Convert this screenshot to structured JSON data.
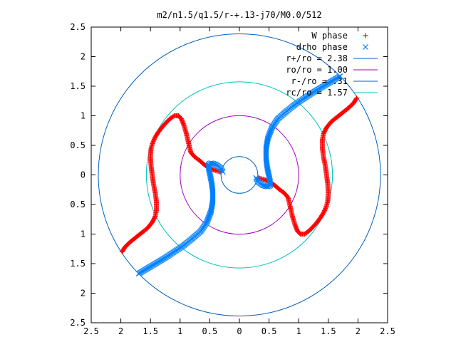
{
  "chart_data": {
    "type": "scatter",
    "title": "m2/n1.5/q1.5/r-+.13-j70/M0.0/512",
    "xlabel": "",
    "ylabel": "",
    "xlim": [
      -2.5,
      2.5
    ],
    "ylim": [
      -2.5,
      2.5
    ],
    "x_ticks": [
      -2.5,
      -2,
      -1.5,
      -1,
      -0.5,
      0,
      0.5,
      1,
      1.5,
      2,
      2.5
    ],
    "y_ticks": [
      -2.5,
      -2,
      -1.5,
      -1,
      -0.5,
      0,
      0.5,
      1,
      1.5,
      2,
      2.5
    ],
    "x_tick_labels": [
      "2.5",
      "2",
      "1.5",
      "1",
      "0.5",
      "0",
      "0.5",
      "1",
      "1.5",
      "2",
      "2.5"
    ],
    "y_tick_labels": [
      "2.5",
      "2",
      "1.5",
      "1",
      "0.5",
      "0",
      "0.5",
      "1",
      "1.5",
      "2",
      "2.5"
    ],
    "grid": false,
    "legend_position": "top-right",
    "series": [
      {
        "name": "W phase",
        "marker": "plus",
        "color": "#ff0000",
        "x": [
          -1.98,
          -1.93,
          -1.85,
          -1.75,
          -1.65,
          -1.55,
          -1.47,
          -1.42,
          -1.4,
          -1.4,
          -1.42,
          -1.45,
          -1.47,
          -1.49,
          -1.5,
          -1.49,
          -1.46,
          -1.42,
          -1.37,
          -1.31,
          -1.24,
          -1.17,
          -1.1,
          -1.03,
          -0.98,
          -0.94,
          -0.9,
          -0.86,
          -0.82,
          -0.75,
          -0.68,
          -0.6,
          -0.52,
          -0.42,
          -0.32,
          1.98,
          1.93,
          1.85,
          1.75,
          1.65,
          1.55,
          1.47,
          1.42,
          1.4,
          1.4,
          1.42,
          1.45,
          1.47,
          1.49,
          1.5,
          1.49,
          1.46,
          1.42,
          1.37,
          1.31,
          1.24,
          1.17,
          1.1,
          1.03,
          0.98,
          0.94,
          0.9,
          0.86,
          0.82,
          0.75,
          0.68,
          0.6,
          0.52,
          0.42,
          0.32
        ],
        "y": [
          -1.3,
          -1.22,
          -1.14,
          -1.06,
          -0.98,
          -0.9,
          -0.8,
          -0.7,
          -0.6,
          -0.45,
          -0.3,
          -0.15,
          0.0,
          0.15,
          0.3,
          0.45,
          0.55,
          0.64,
          0.72,
          0.8,
          0.88,
          0.95,
          1.0,
          1.0,
          0.95,
          0.85,
          0.72,
          0.55,
          0.38,
          0.3,
          0.25,
          0.18,
          0.12,
          0.08,
          0.05,
          1.3,
          1.22,
          1.14,
          1.06,
          0.98,
          0.9,
          0.8,
          0.7,
          0.6,
          0.45,
          0.3,
          0.15,
          0.0,
          -0.15,
          -0.3,
          -0.45,
          -0.55,
          -0.64,
          -0.72,
          -0.8,
          -0.88,
          -0.95,
          -1.0,
          -1.0,
          -0.95,
          -0.85,
          -0.72,
          -0.55,
          -0.38,
          -0.3,
          -0.25,
          -0.18,
          -0.12,
          -0.08,
          -0.05
        ]
      },
      {
        "name": "drho phase",
        "marker": "cross",
        "color": "#0080ff",
        "x": [
          -1.7,
          -1.55,
          -1.4,
          -1.25,
          -1.1,
          -0.95,
          -0.8,
          -0.65,
          -0.55,
          -0.48,
          -0.45,
          -0.45,
          -0.47,
          -0.5,
          -0.52,
          -0.52,
          -0.48,
          -0.4,
          -0.32,
          -0.28,
          1.7,
          1.55,
          1.4,
          1.25,
          1.1,
          0.95,
          0.8,
          0.65,
          0.55,
          0.48,
          0.45,
          0.45,
          0.47,
          0.5,
          0.52,
          0.52,
          0.48,
          0.4,
          0.32,
          0.28
        ],
        "y": [
          -1.67,
          -1.58,
          -1.49,
          -1.4,
          -1.3,
          -1.2,
          -1.08,
          -0.95,
          -0.8,
          -0.62,
          -0.45,
          -0.28,
          -0.12,
          0.02,
          0.12,
          0.18,
          0.2,
          0.18,
          0.12,
          0.05,
          1.67,
          1.58,
          1.49,
          1.4,
          1.3,
          1.2,
          1.08,
          0.95,
          0.8,
          0.62,
          0.45,
          0.28,
          0.12,
          -0.02,
          -0.12,
          -0.18,
          -0.2,
          -0.18,
          -0.12,
          -0.05
        ]
      }
    ],
    "circles": [
      {
        "name": "r+/ro = 2.38",
        "radius": 2.38,
        "color": "#0060c0"
      },
      {
        "name": "ro/ro = 1.00",
        "radius": 1.0,
        "color": "#a000c0"
      },
      {
        "name": "r-/ro = .31",
        "radius": 0.31,
        "color": "#0060c0"
      },
      {
        "name": "rc/ro = 1.57",
        "radius": 1.57,
        "color": "#00c0c0"
      }
    ]
  }
}
